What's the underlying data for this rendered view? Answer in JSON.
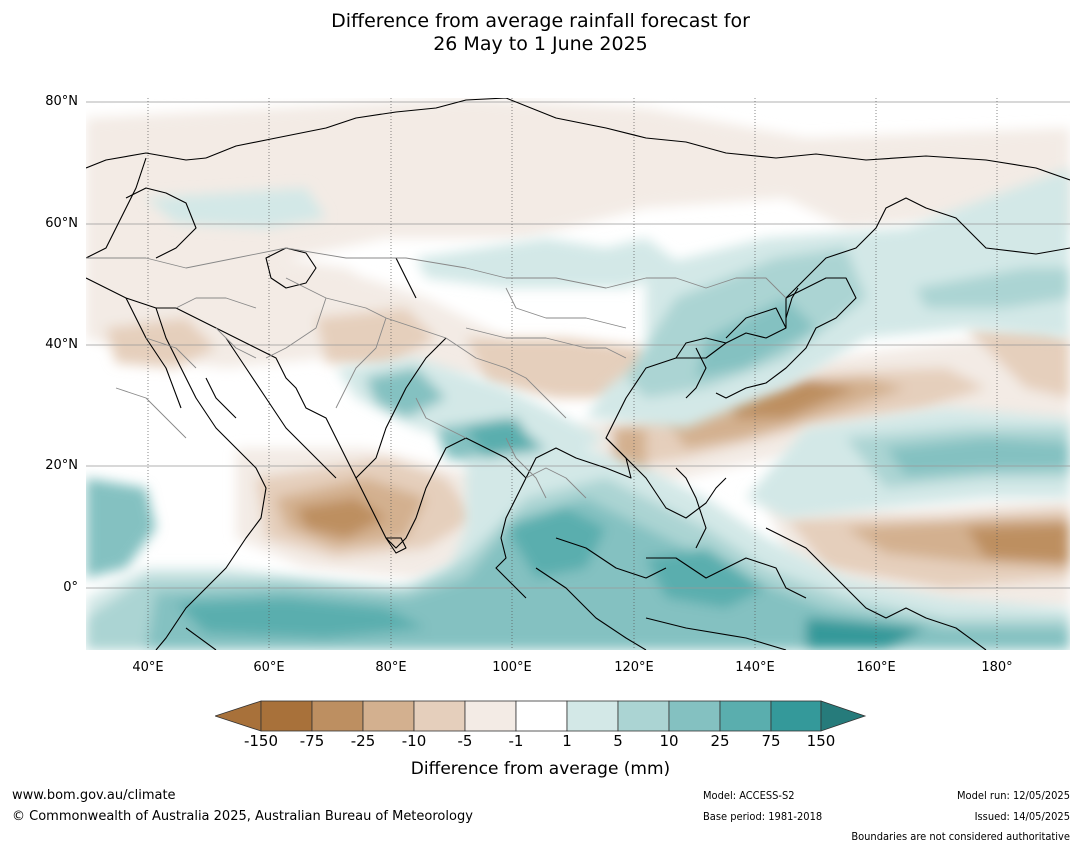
{
  "title_line1": "Difference from average rainfall forecast for",
  "title_line2": "26 May to 1 June 2025",
  "lat_labels": [
    "80°N",
    "60°N",
    "40°N",
    "20°N",
    "0°"
  ],
  "lon_labels": [
    "40°E",
    "60°E",
    "80°E",
    "100°E",
    "120°E",
    "140°E",
    "160°E",
    "180°"
  ],
  "colorbar": {
    "labels": [
      "-150",
      "-75",
      "-25",
      "-10",
      "-5",
      "-1",
      "1",
      "5",
      "10",
      "25",
      "75",
      "150"
    ],
    "colors": [
      "#a8713a",
      "#bd8f61",
      "#d3b08f",
      "#e5cfbc",
      "#f3ebe5",
      "#ffffff",
      "#d3e8e7",
      "#abd4d3",
      "#84c1c1",
      "#5aaeae",
      "#34999a",
      "#267b7b"
    ],
    "title": "Difference from average (mm)"
  },
  "footer": {
    "website": "www.bom.gov.au/climate",
    "copyright": "© Commonwealth of Australia 2025, Australian Bureau of Meteorology",
    "model": "Model: ACCESS-S2",
    "base_period": "Base period: 1981-2018",
    "model_run": "Model run: 12/05/2025",
    "issued": "Issued: 14/05/2025",
    "boundaries_note": "Boundaries are not considered authoritative"
  }
}
